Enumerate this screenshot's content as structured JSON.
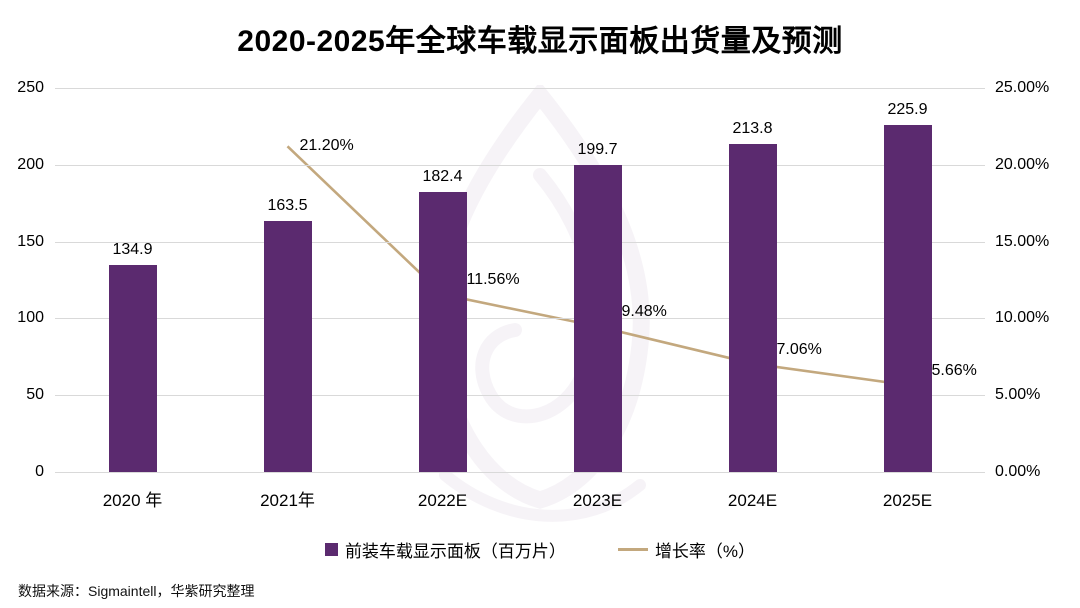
{
  "title": "2020-2025年全球车载显示面板出货量及预测",
  "source": "数据来源：Sigmaintell，华紫研究整理",
  "legend": {
    "bar_label": "前装车载显示面板（百万片）",
    "line_label": "增长率（%）"
  },
  "colors": {
    "bar": "#5b2a6f",
    "line": "#c3a87e",
    "grid": "#d9d9d9",
    "watermark": "#5b2a6f"
  },
  "chart_data": {
    "type": "bar+line",
    "title": "2020-2025年全球车载显示面板出货量及预测",
    "categories": [
      "2020 年",
      "2021年",
      "2022E",
      "2023E",
      "2024E",
      "2025E"
    ],
    "series": [
      {
        "name": "前装车载显示面板（百万片）",
        "type": "bar",
        "axis": "left",
        "color": "#5b2a6f",
        "values": [
          134.9,
          163.5,
          182.4,
          199.7,
          213.8,
          225.9
        ],
        "labels": [
          "134.9",
          "163.5",
          "182.4",
          "199.7",
          "213.8",
          "225.9"
        ]
      },
      {
        "name": "增长率（%）",
        "type": "line",
        "axis": "right",
        "color": "#c3a87e",
        "values": [
          null,
          21.2,
          11.56,
          9.48,
          7.06,
          5.66
        ],
        "labels": [
          "",
          "21.20%",
          "11.56%",
          "9.48%",
          "7.06%",
          "5.66%"
        ]
      }
    ],
    "left_axis": {
      "min": 0,
      "max": 250,
      "tick_labels": [
        "0",
        "50",
        "100",
        "150",
        "200",
        "250"
      ]
    },
    "right_axis": {
      "min": 0,
      "max": 25,
      "tick_labels": [
        "0.00%",
        "5.00%",
        "10.00%",
        "15.00%",
        "20.00%",
        "25.00%"
      ]
    },
    "grid": true,
    "legend_position": "bottom"
  }
}
